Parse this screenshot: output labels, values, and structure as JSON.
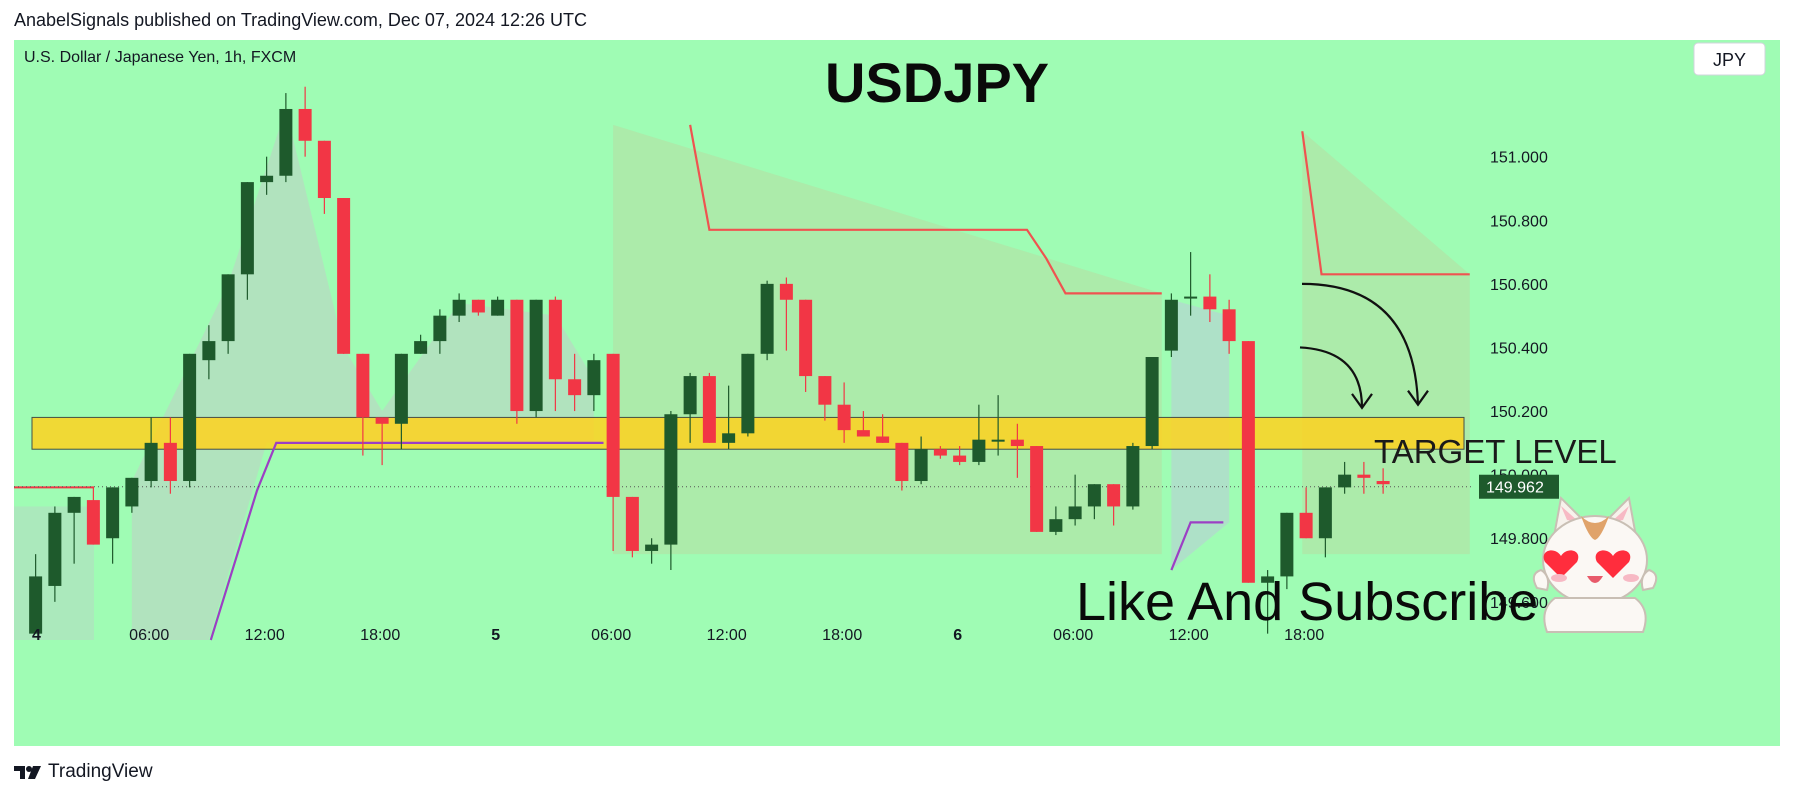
{
  "header": {
    "published_by": "AnabelSignals published on TradingView.com, Dec 07, 2024 12:26 UTC"
  },
  "footer": {
    "brand": "TradingView"
  },
  "colors": {
    "background": "#9ffcb4",
    "bull_candle": "#1e5a2c",
    "bear_candle": "#f23645",
    "zone_fill": "#ffd31f",
    "resistance_line": "#ef5350",
    "support_line": "#9c3fc4",
    "price_label_bg": "#1e5a2c"
  },
  "chart_data": {
    "type": "candlestick",
    "symbol_info": "U.S. Dollar / Japanese Yen, 1h, FXCM",
    "title": "USDJPY",
    "currency_button": "JPY",
    "annotation_target": "TARGET LEVEL",
    "annotation_cta": "Like And Subscribe",
    "current_price": "149.962",
    "y_range": [
      149.48,
      151.26
    ],
    "y_ticks": [
      "151.000",
      "150.800",
      "150.600",
      "150.400",
      "150.200",
      "150.000",
      "149.800",
      "149.600"
    ],
    "x_ticks": [
      "4",
      "06:00",
      "12:00",
      "18:00",
      "5",
      "06:00",
      "12:00",
      "18:00",
      "6",
      "06:00",
      "12:00",
      "18:00"
    ],
    "zone": {
      "low": 150.08,
      "high": 150.18
    },
    "candles": [
      [
        149.5,
        149.75,
        149.5,
        149.68
      ],
      [
        149.65,
        149.9,
        149.6,
        149.88
      ],
      [
        149.88,
        149.93,
        149.72,
        149.93
      ],
      [
        149.92,
        149.96,
        149.78,
        149.78
      ],
      [
        149.8,
        149.96,
        149.72,
        149.96
      ],
      [
        149.9,
        149.99,
        149.88,
        149.99
      ],
      [
        149.98,
        150.18,
        149.96,
        150.1
      ],
      [
        150.1,
        150.18,
        149.94,
        149.98
      ],
      [
        149.98,
        150.38,
        149.96,
        150.38
      ],
      [
        150.36,
        150.47,
        150.3,
        150.42
      ],
      [
        150.42,
        150.63,
        150.38,
        150.63
      ],
      [
        150.63,
        150.92,
        150.55,
        150.92
      ],
      [
        150.92,
        151.0,
        150.88,
        150.94
      ],
      [
        150.94,
        151.2,
        150.92,
        151.15
      ],
      [
        151.15,
        151.22,
        151.0,
        151.05
      ],
      [
        151.05,
        151.05,
        150.82,
        150.87
      ],
      [
        150.87,
        150.87,
        150.38,
        150.38
      ],
      [
        150.38,
        150.38,
        150.06,
        150.18
      ],
      [
        150.18,
        150.18,
        150.03,
        150.16
      ],
      [
        150.16,
        150.38,
        150.08,
        150.38
      ],
      [
        150.38,
        150.44,
        150.38,
        150.42
      ],
      [
        150.42,
        150.52,
        150.38,
        150.5
      ],
      [
        150.5,
        150.57,
        150.48,
        150.55
      ],
      [
        150.55,
        150.55,
        150.5,
        150.51
      ],
      [
        150.5,
        150.56,
        150.5,
        150.55
      ],
      [
        150.55,
        150.55,
        150.16,
        150.2
      ],
      [
        150.2,
        150.55,
        150.18,
        150.55
      ],
      [
        150.55,
        150.56,
        150.2,
        150.3
      ],
      [
        150.3,
        150.38,
        150.2,
        150.25
      ],
      [
        150.25,
        150.38,
        150.2,
        150.36
      ],
      [
        150.38,
        150.38,
        149.76,
        149.93
      ],
      [
        149.93,
        149.93,
        149.74,
        149.76
      ],
      [
        149.76,
        149.8,
        149.72,
        149.78
      ],
      [
        149.78,
        150.2,
        149.7,
        150.19
      ],
      [
        150.19,
        150.32,
        150.1,
        150.31
      ],
      [
        150.31,
        150.32,
        150.1,
        150.1
      ],
      [
        150.1,
        150.28,
        150.08,
        150.13
      ],
      [
        150.13,
        150.38,
        150.12,
        150.38
      ],
      [
        150.38,
        150.61,
        150.36,
        150.6
      ],
      [
        150.6,
        150.62,
        150.39,
        150.55
      ],
      [
        150.55,
        150.55,
        150.26,
        150.31
      ],
      [
        150.31,
        150.31,
        150.17,
        150.22
      ],
      [
        150.22,
        150.29,
        150.1,
        150.14
      ],
      [
        150.14,
        150.2,
        150.12,
        150.12
      ],
      [
        150.12,
        150.19,
        150.1,
        150.1
      ],
      [
        150.1,
        150.1,
        149.95,
        149.98
      ],
      [
        149.98,
        150.12,
        149.97,
        150.08
      ],
      [
        150.08,
        150.09,
        150.05,
        150.06
      ],
      [
        150.06,
        150.09,
        150.03,
        150.04
      ],
      [
        150.04,
        150.22,
        150.03,
        150.11
      ],
      [
        150.11,
        150.25,
        150.06,
        150.11
      ],
      [
        150.11,
        150.16,
        149.99,
        150.09
      ],
      [
        150.09,
        150.09,
        149.82,
        149.82
      ],
      [
        149.82,
        149.9,
        149.81,
        149.86
      ],
      [
        149.86,
        150.0,
        149.84,
        149.9
      ],
      [
        149.9,
        149.97,
        149.86,
        149.97
      ],
      [
        149.97,
        149.97,
        149.84,
        149.9
      ],
      [
        149.9,
        150.1,
        149.89,
        150.09
      ],
      [
        150.09,
        150.37,
        150.08,
        150.37
      ],
      [
        150.39,
        150.57,
        150.37,
        150.55
      ],
      [
        150.56,
        150.7,
        150.5,
        150.56
      ],
      [
        150.56,
        150.63,
        150.48,
        150.52
      ],
      [
        150.52,
        150.55,
        150.38,
        150.42
      ],
      [
        150.42,
        150.42,
        149.66,
        149.66
      ],
      [
        149.66,
        149.7,
        149.5,
        149.68
      ],
      [
        149.68,
        149.88,
        149.64,
        149.88
      ],
      [
        149.88,
        149.96,
        149.8,
        149.8
      ],
      [
        149.8,
        149.96,
        149.74,
        149.96
      ],
      [
        149.96,
        150.04,
        149.94,
        150.0
      ],
      [
        150.0,
        150.04,
        149.94,
        149.99
      ],
      [
        149.98,
        150.02,
        149.94,
        149.97
      ]
    ],
    "red_lines": [
      [
        [
          34.0,
          151.1
        ],
        [
          35.0,
          150.77
        ],
        [
          51.5,
          150.77
        ],
        [
          52.5,
          150.68
        ],
        [
          53.5,
          150.57
        ],
        [
          58.5,
          150.57
        ]
      ],
      [
        [
          65.8,
          151.08
        ],
        [
          66.8,
          150.63
        ],
        [
          74.5,
          150.63
        ]
      ]
    ],
    "purple_lines": [
      [
        [
          9.1,
          149.48
        ],
        [
          11.5,
          149.95
        ],
        [
          12.5,
          150.1
        ],
        [
          29.5,
          150.1
        ]
      ],
      [
        [
          59.0,
          149.7
        ],
        [
          60.0,
          149.85
        ],
        [
          61.7,
          149.85
        ]
      ]
    ]
  }
}
